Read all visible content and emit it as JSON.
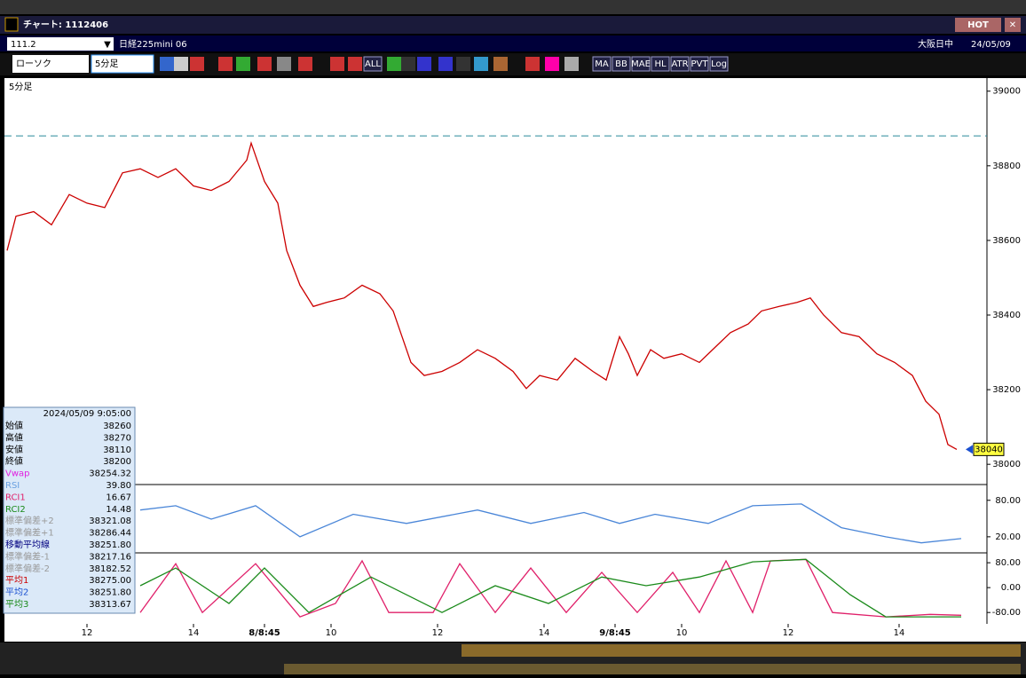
{
  "window": {
    "title": "チャート: 1112406",
    "hot": "HOT"
  },
  "header": {
    "code": "111.2",
    "name": "日経225mini 06",
    "session": "大阪日中",
    "date": "24/05/09"
  },
  "toolbar": {
    "chart_type": "ローソク",
    "interval": "5分足",
    "buttons": [
      "ALL",
      "MA",
      "BB",
      "MAE",
      "HL",
      "ATR",
      "PVT",
      "Log"
    ]
  },
  "chart_data": [
    {
      "type": "line",
      "title": "5分足",
      "color": "#cc0000",
      "x": [
        0,
        2,
        6,
        10,
        14,
        18,
        22,
        26,
        30,
        34,
        38,
        42,
        46,
        50,
        54,
        55,
        58,
        61,
        63,
        66,
        69,
        72,
        76,
        80,
        84,
        87,
        89,
        91,
        94,
        98,
        102,
        106,
        110,
        114,
        117,
        120,
        124,
        128,
        132,
        135,
        138,
        140,
        142,
        145,
        148,
        152,
        156,
        160,
        163,
        167,
        170,
        174,
        178,
        181,
        184,
        188,
        192,
        196,
        200,
        204,
        207,
        210,
        212,
        214
      ],
      "values": [
        38573,
        38665,
        38677,
        38642,
        38723,
        38700,
        38688,
        38781,
        38792,
        38769,
        38792,
        38746,
        38734,
        38758,
        38815,
        38861,
        38758,
        38700,
        38573,
        38480,
        38423,
        38434,
        38446,
        38480,
        38457,
        38411,
        38342,
        38273,
        38238,
        38249,
        38273,
        38307,
        38284,
        38249,
        38203,
        38238,
        38226,
        38284,
        38249,
        38226,
        38342,
        38296,
        38238,
        38307,
        38284,
        38296,
        38273,
        38319,
        38353,
        38376,
        38411,
        38423,
        38434,
        38446,
        38400,
        38353,
        38342,
        38296,
        38273,
        38238,
        38169,
        38134,
        38053,
        38040
      ],
      "xlim": [
        0,
        220
      ],
      "ylim": [
        37960,
        39016
      ],
      "yticks": [
        38000,
        38200,
        38400,
        38600,
        38800,
        39000
      ],
      "xticks": [
        {
          "value": 18,
          "label": "12"
        },
        {
          "value": 42,
          "label": "14"
        },
        {
          "value": 58,
          "label": "8/8:45"
        },
        {
          "value": 73,
          "label": "10"
        },
        {
          "value": 97,
          "label": "12"
        },
        {
          "value": 121,
          "label": "14"
        },
        {
          "value": 137,
          "label": "9/8:45"
        },
        {
          "value": 152,
          "label": "10"
        },
        {
          "value": 176,
          "label": "12"
        },
        {
          "value": 201,
          "label": "14"
        }
      ],
      "reference_line": 38880,
      "last_price_label": 38040
    },
    {
      "type": "line",
      "color": "#4a86d8",
      "x": [
        30,
        38,
        46,
        56,
        66,
        78,
        90,
        106,
        118,
        130,
        138,
        146,
        158,
        168,
        179,
        188,
        198,
        206,
        215
      ],
      "values": [
        64,
        71,
        49,
        71,
        20,
        57,
        42,
        64,
        42,
        60,
        42,
        57,
        42,
        71,
        74,
        35,
        20,
        10,
        17
      ],
      "xlim": [
        0,
        220
      ],
      "ylim": [
        -5,
        103
      ],
      "yticks": [
        {
          "value": 80,
          "label": "80.00"
        },
        {
          "value": 20,
          "label": "20.00"
        }
      ]
    },
    {
      "type": "line",
      "xlim": [
        0,
        220
      ],
      "ylim": [
        -108,
        106
      ],
      "series": [
        {
          "color": "#e0206a",
          "x": [
            30,
            38,
            44,
            56,
            66,
            74,
            80,
            86,
            96,
            102,
            110,
            118,
            126,
            134,
            142,
            150,
            156,
            162,
            168,
            172,
            180,
            186,
            198,
            208,
            215
          ],
          "values": [
            -80,
            77,
            -80,
            77,
            -94,
            -51,
            86,
            -80,
            -80,
            77,
            -80,
            63,
            -80,
            49,
            -80,
            49,
            -80,
            86,
            -80,
            86,
            91,
            -80,
            -94,
            -86,
            -89
          ]
        },
        {
          "color": "#1a8a1a",
          "x": [
            30,
            38,
            50,
            58,
            68,
            82,
            98,
            110,
            122,
            134,
            144,
            156,
            168,
            180,
            190,
            198,
            215
          ],
          "values": [
            6,
            63,
            -51,
            63,
            -80,
            34,
            -80,
            6,
            -51,
            34,
            6,
            34,
            83,
            91,
            -23,
            -94,
            -94
          ]
        }
      ],
      "yticks": [
        {
          "value": 80,
          "label": "80.00"
        },
        {
          "value": 0,
          "label": "0.00"
        },
        {
          "value": -80,
          "label": "-80.00"
        }
      ]
    }
  ],
  "info_panel": {
    "timestamp": "2024/05/09 9:05:00",
    "rows": [
      {
        "label": "始値",
        "value": "38260",
        "color": "#000000"
      },
      {
        "label": "高値",
        "value": "38270",
        "color": "#000000"
      },
      {
        "label": "安値",
        "value": "38110",
        "color": "#000000"
      },
      {
        "label": "終値",
        "value": "38200",
        "color": "#000000"
      },
      {
        "label": "Vwap",
        "value": "38254.32",
        "color": "#e020e0"
      },
      {
        "label": "RSI",
        "value": "39.80",
        "color": "#6aa0e0"
      },
      {
        "label": "RCI1",
        "value": "16.67",
        "color": "#e0206a"
      },
      {
        "label": "RCI2",
        "value": "14.48",
        "color": "#1a8a1a"
      },
      {
        "label": "標準偏差+2",
        "value": "38321.08",
        "color": "#9a9a9a"
      },
      {
        "label": "標準偏差+1",
        "value": "38286.44",
        "color": "#9a9a9a"
      },
      {
        "label": "移動平均線",
        "value": "38251.80",
        "color": "#000080"
      },
      {
        "label": "標準偏差-1",
        "value": "38217.16",
        "color": "#9a9a9a"
      },
      {
        "label": "標準偏差-2",
        "value": "38182.52",
        "color": "#9a9a9a"
      },
      {
        "label": "平均1",
        "value": "38275.00",
        "color": "#cc0000"
      },
      {
        "label": "平均2",
        "value": "38251.80",
        "color": "#1a50d0"
      },
      {
        "label": "平均3",
        "value": "38313.67",
        "color": "#1a8a1a"
      }
    ]
  }
}
